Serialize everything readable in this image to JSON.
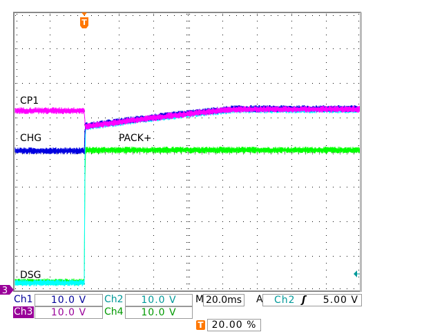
{
  "chart_data": {
    "type": "line",
    "title": "",
    "xlabel": "",
    "ylabel": "",
    "grid": true,
    "time_per_div_ms": 20,
    "volts_per_div": 10,
    "xlim_ms": [
      -40,
      160
    ],
    "ylim_V": [
      0,
      80
    ],
    "trigger_position_percent": 20,
    "annotations": [
      "CP1",
      "CHG",
      "PACK+",
      "DSG"
    ],
    "series": [
      {
        "name": "CP1",
        "channel": "Ch3",
        "color": "#ff00ff",
        "x": [
          -40,
          0,
          0.5,
          31,
          59,
          87,
          120,
          160
        ],
        "y": [
          52,
          52,
          47.4,
          49.4,
          51,
          52.4,
          52.4,
          52.4
        ]
      },
      {
        "name": "CHG",
        "channel": "Ch1",
        "color": "#0000e0",
        "x": [
          -40,
          0,
          0.5,
          31,
          59,
          87,
          120,
          160
        ],
        "y": [
          40.4,
          40.4,
          47.6,
          49.6,
          51.2,
          52.6,
          52.6,
          52.6
        ]
      },
      {
        "name": "DSG",
        "channel": "Ch2",
        "color": "#00ffff",
        "x": [
          -40,
          0,
          0.5,
          31,
          59,
          87,
          120,
          160
        ],
        "y": [
          2.2,
          2.2,
          47.2,
          49.2,
          50.8,
          52.2,
          52.2,
          52.2
        ]
      },
      {
        "name": "PACK+",
        "channel": "Ch4",
        "color": "#00ff00",
        "x": [
          -40,
          0,
          0.5,
          160
        ],
        "y": [
          2.5,
          2.5,
          40.6,
          40.6
        ]
      }
    ]
  },
  "readout": {
    "ch1": {
      "label": "Ch1",
      "value": "10.0 V",
      "color": "#000099"
    },
    "ch2": {
      "label": "Ch2",
      "value": "10.0 V",
      "color": "#009999"
    },
    "ch3": {
      "label": "Ch3",
      "value": "10.0 V",
      "color": "#990099"
    },
    "ch4": {
      "label": "Ch4",
      "value": "10.0 V",
      "color": "#009900"
    },
    "timebase": {
      "label": "M",
      "value": "20.0ms"
    },
    "trigger": {
      "label": "A",
      "source": "Ch2",
      "slope_icon": "rising-edge-icon",
      "slope": "ʃ",
      "level": "5.00 V"
    },
    "trigger_position": {
      "icon": "T",
      "value": "20.00 %",
      "color": "#ff7700"
    },
    "ground_marker": "3"
  }
}
